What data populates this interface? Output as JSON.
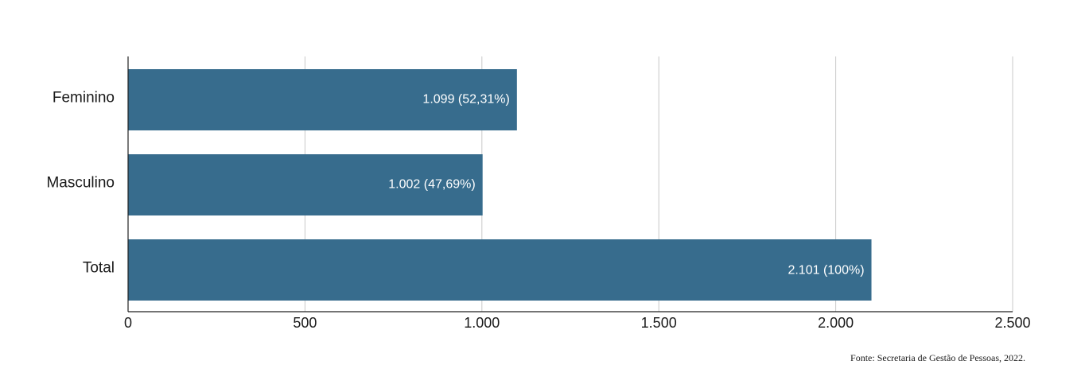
{
  "chart_data": {
    "type": "bar",
    "orientation": "horizontal",
    "categories": [
      "Feminino",
      "Masculino",
      "Total"
    ],
    "values": [
      1099,
      1002,
      2101
    ],
    "data_labels": [
      "1.099 (52,31%)",
      "1.002 (47,69%)",
      "2.101 (100%)"
    ],
    "xlim": [
      0,
      2500
    ],
    "x_ticks": [
      0,
      500,
      1000,
      1500,
      2000,
      2500
    ],
    "x_tick_labels": [
      "0",
      "500",
      "1.000",
      "1.500",
      "2.000",
      "2.500"
    ],
    "grid": "vertical",
    "bar_color": "#376c8d",
    "grid_color": "#c8c8c8",
    "axis_color": "#222222"
  },
  "source": "Fonte: Secretaria de Gestão de Pessoas, 2022."
}
